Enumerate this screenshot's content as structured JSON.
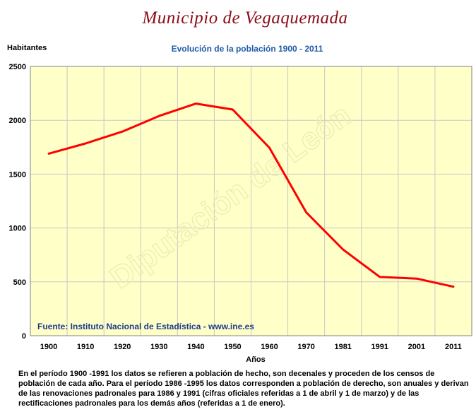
{
  "page": {
    "title": "Municipio de Vegaquemada",
    "footnote": "En el período 1900 -1991 los datos se refieren a población de hecho, son decenales y proceden de los censos de población de cada año. Para el período 1986 -1995 los datos corresponden a población de derecho, son anuales y derivan de las renovaciones padronales para 1986 y 1991 (cifras oficiales referidas a 1 de abril y 1 de marzo) y de las rectificaciones padronales para los demás años (referidas a 1 de enero)."
  },
  "chart_data": {
    "type": "line",
    "subtitle": "Evolución de la población 1900 - 2011",
    "ylabel": "Habitantes",
    "xlabel": "Años",
    "source": "Fuente: Instituto Nacional de Estadística - www.ine.es",
    "watermark": "Diputación de León",
    "categories": [
      "1900",
      "1910",
      "1920",
      "1930",
      "1940",
      "1950",
      "1960",
      "1970",
      "1981",
      "1991",
      "2001",
      "2011"
    ],
    "series": [
      {
        "values": [
          1690,
          1785,
          1895,
          2040,
          2155,
          2100,
          1745,
          1145,
          800,
          545,
          530,
          455
        ],
        "color": "#ff0000"
      }
    ],
    "ylim": [
      0,
      2500
    ],
    "yticks": [
      0,
      500,
      1000,
      1500,
      2000,
      2500
    ],
    "grid": true,
    "plot_background": "#ffffc8",
    "grid_color": "#c8c8c8",
    "source_color": "#1f3a8c"
  }
}
